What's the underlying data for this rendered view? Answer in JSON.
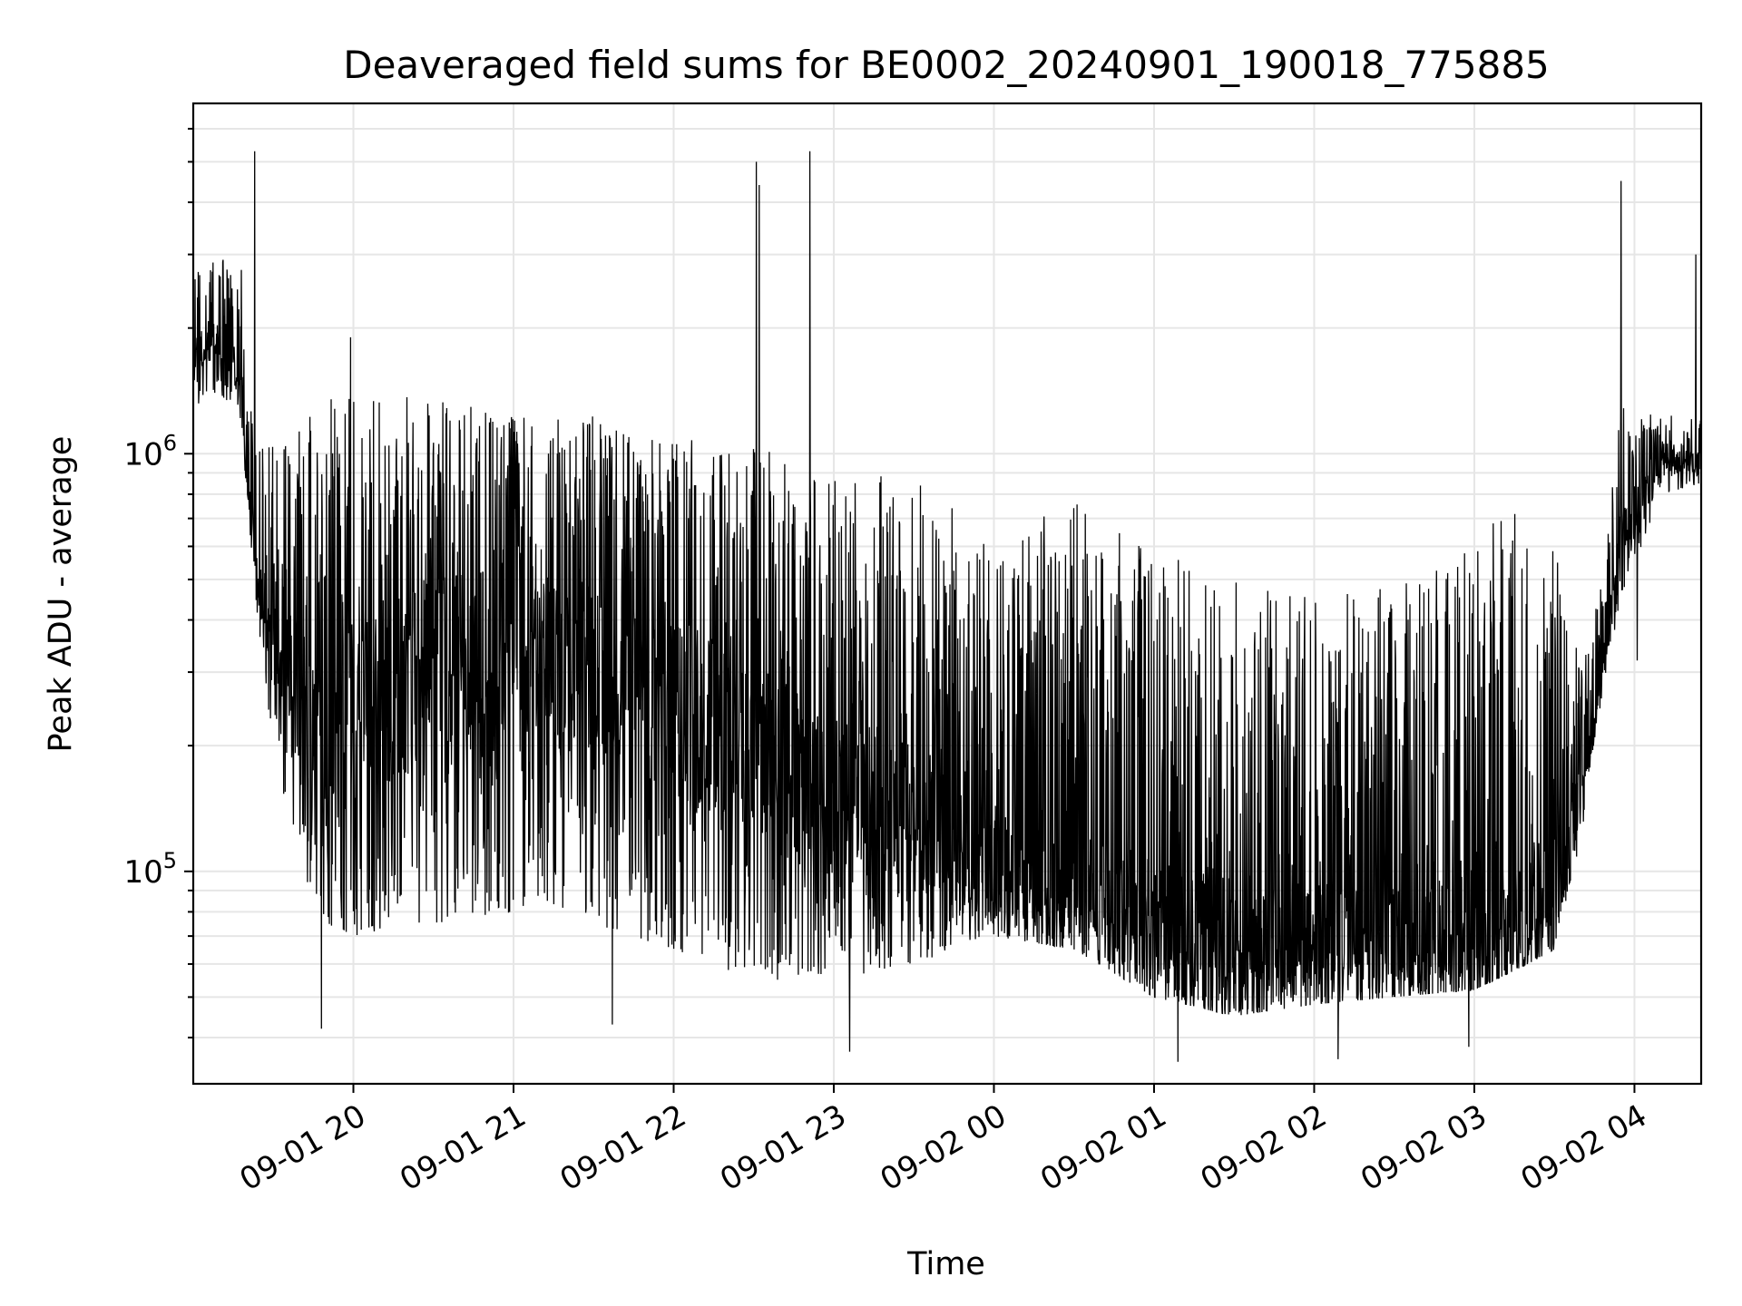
{
  "chart_data": {
    "type": "line",
    "title": "Deaveraged field sums for BE0002_20240901_190018_775885",
    "xlabel": "Time",
    "ylabel": "Peak ADU - average",
    "yscale": "log",
    "xlim": [
      "2024-09-01 19:00",
      "2024-09-02 04:25"
    ],
    "ylim": [
      31000,
      6900000
    ],
    "grid": true,
    "x_ticks": [
      "09-01 20",
      "09-01 21",
      "09-01 22",
      "09-01 23",
      "09-02 00",
      "09-02 01",
      "09-02 02",
      "09-02 03",
      "09-02 04"
    ],
    "y_ticks": [
      {
        "base": "10",
        "exp": "5",
        "value": 100000
      },
      {
        "base": "10",
        "exp": "6",
        "value": 1000000
      }
    ],
    "line_color": "#000000",
    "series": [
      {
        "x": [
          "2024-09-01 19:00",
          "2024-09-01 19:10",
          "2024-09-01 19:18",
          "2024-09-01 19:20",
          "2024-09-01 19:25",
          "2024-09-01 19:30",
          "2024-09-01 19:40",
          "2024-09-01 19:50",
          "2024-09-01 20:00",
          "2024-09-01 20:30",
          "2024-09-01 21:00",
          "2024-09-01 21:30",
          "2024-09-01 22:00",
          "2024-09-01 22:30",
          "2024-09-01 23:00",
          "2024-09-01 23:30",
          "2024-09-02 00:00",
          "2024-09-02 00:30",
          "2024-09-02 01:00",
          "2024-09-02 01:30",
          "2024-09-02 02:00",
          "2024-09-02 02:30",
          "2024-09-02 03:00",
          "2024-09-02 03:20",
          "2024-09-02 03:30",
          "2024-09-02 03:40",
          "2024-09-02 03:48",
          "2024-09-02 03:55",
          "2024-09-02 04:10",
          "2024-09-02 04:25"
        ],
        "low": [
          1300000,
          1400000,
          1200000,
          800000,
          350000,
          200000,
          100000,
          75000,
          70000,
          75000,
          80000,
          75000,
          65000,
          55000,
          55000,
          60000,
          70000,
          65000,
          50000,
          45000,
          48000,
          50000,
          52000,
          60000,
          65000,
          120000,
          270000,
          450000,
          800000,
          850000
        ],
        "high": [
          2800000,
          3000000,
          2900000,
          1300000,
          1200000,
          1300000,
          1300000,
          1350000,
          1400000,
          1350000,
          1250000,
          1250000,
          1100000,
          1050000,
          900000,
          900000,
          600000,
          800000,
          600000,
          550000,
          450000,
          500000,
          650000,
          750000,
          650000,
          300000,
          500000,
          1300000,
          1250000,
          1200000
        ],
        "median": [
          1800000,
          1900000,
          1600000,
          900000,
          500000,
          400000,
          250000,
          200000,
          250000,
          300000,
          350000,
          300000,
          250000,
          200000,
          150000,
          130000,
          100000,
          90000,
          70000,
          65000,
          65000,
          65000,
          70000,
          70000,
          90000,
          150000,
          300000,
          600000,
          950000,
          950000
        ]
      }
    ],
    "spikes": [
      {
        "x": "2024-09-01 19:23",
        "y": 5300000
      },
      {
        "x": "2024-09-01 19:59",
        "y": 1900000
      },
      {
        "x": "2024-09-01 22:31",
        "y": 5000000
      },
      {
        "x": "2024-09-01 22:32",
        "y": 4400000
      },
      {
        "x": "2024-09-01 22:51",
        "y": 5300000
      },
      {
        "x": "2024-09-02 03:55",
        "y": 4500000
      },
      {
        "x": "2024-09-02 04:23",
        "y": 3000000
      },
      {
        "x": "2024-09-01 19:48",
        "y": 42000
      },
      {
        "x": "2024-09-01 21:37",
        "y": 43000
      },
      {
        "x": "2024-09-01 23:06",
        "y": 37000
      },
      {
        "x": "2024-09-02 01:09",
        "y": 35000
      },
      {
        "x": "2024-09-02 02:09",
        "y": 35500
      },
      {
        "x": "2024-09-02 02:58",
        "y": 38000
      },
      {
        "x": "2024-09-02 04:01",
        "y": 320000
      }
    ]
  }
}
